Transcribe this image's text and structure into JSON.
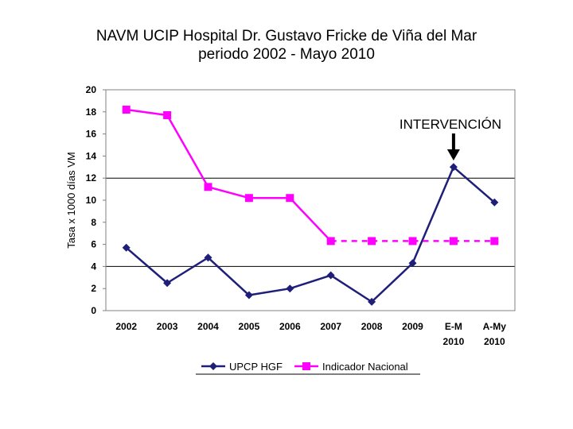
{
  "chart_data": {
    "type": "line",
    "title": "NAVM UCIP Hospital Dr. Gustavo Fricke de Viña del Mar",
    "subtitle": "periodo 2002 - Mayo 2010",
    "ylabel": "Tasa x 1000 días VM",
    "xlabel": "",
    "ylim": [
      0,
      20
    ],
    "yticks": [
      0,
      2,
      4,
      6,
      8,
      10,
      12,
      14,
      16,
      18,
      20
    ],
    "gridlines": [
      4,
      12,
      20
    ],
    "categories": [
      {
        "line1": "2002",
        "line2": ""
      },
      {
        "line1": "2003",
        "line2": ""
      },
      {
        "line1": "2004",
        "line2": ""
      },
      {
        "line1": "2005",
        "line2": ""
      },
      {
        "line1": "2006",
        "line2": ""
      },
      {
        "line1": "2007",
        "line2": ""
      },
      {
        "line1": "2008",
        "line2": ""
      },
      {
        "line1": "2009",
        "line2": ""
      },
      {
        "line1": "E-M",
        "line2": "2010"
      },
      {
        "line1": "A-My",
        "line2": "2010"
      }
    ],
    "series": [
      {
        "name": "UPCP HGF",
        "color": "#1f1f7a",
        "marker": "diamond",
        "values": [
          5.7,
          2.5,
          4.8,
          1.4,
          2.0,
          3.2,
          0.8,
          4.3,
          13.0,
          9.8
        ]
      },
      {
        "name": "Indicador Nacional",
        "color": "#ff00ff",
        "marker": "square",
        "values": [
          18.2,
          17.7,
          11.2,
          10.2,
          10.2,
          6.3,
          6.3,
          6.3,
          6.3,
          6.3
        ],
        "dashed_from_index": 5
      }
    ],
    "annotation": {
      "text": "INTERVENCIÓN",
      "category_index": 8
    },
    "legend_position": "bottom"
  }
}
